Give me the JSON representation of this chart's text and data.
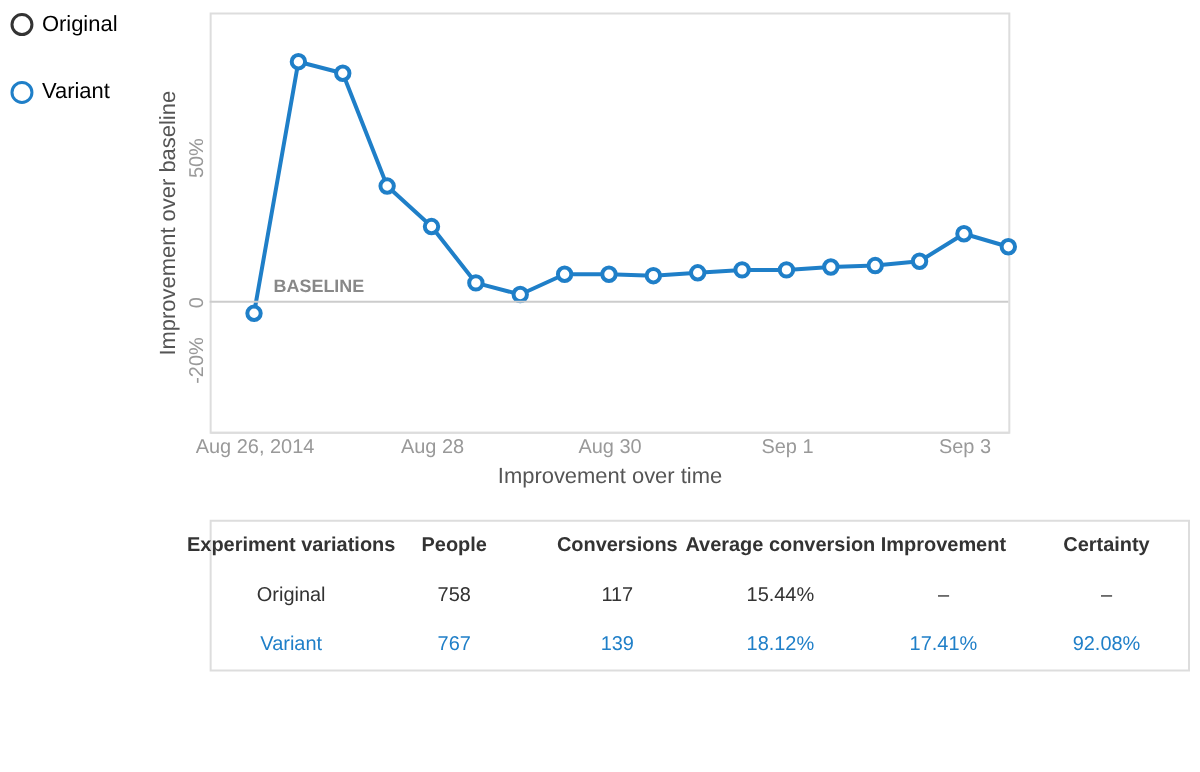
{
  "chart_data": [
    {
      "type": "line",
      "xlabel": "Improvement over time",
      "ylabel": "Improvement over baseline",
      "x": [
        "2014-08-26T00:00",
        "2014-08-26T12:00",
        "2014-08-27T00:00",
        "2014-08-27T12:00",
        "2014-08-28T00:00",
        "2014-08-28T12:00",
        "2014-08-29T00:00",
        "2014-08-29T12:00",
        "2014-08-30T00:00",
        "2014-08-30T12:00",
        "2014-08-31T00:00",
        "2014-08-31T12:00",
        "2014-09-01T00:00",
        "2014-09-01T12:00",
        "2014-09-02T00:00",
        "2014-09-02T12:00",
        "2014-09-03T00:00",
        "2014-09-03T12:00"
      ],
      "series": [
        {
          "name": "Original",
          "color": "#333333",
          "values": [
            null,
            null,
            null,
            null,
            null,
            null,
            null,
            null,
            null,
            null,
            null,
            null,
            null,
            null,
            null,
            null,
            null,
            null
          ]
        },
        {
          "name": "Variant",
          "color": "#1f7fc8",
          "values": [
            -4,
            83,
            79,
            40,
            26,
            6.5,
            2.5,
            9.5,
            9.5,
            9,
            10,
            11,
            11,
            12,
            12.5,
            14,
            23.5,
            19
          ]
        }
      ],
      "xlim": [
        "2014-08-25T12:00",
        "2014-09-03T12:00"
      ],
      "xticks": [
        {
          "value": "2014-08-26",
          "label": "Aug 26, 2014"
        },
        {
          "value": "2014-08-28",
          "label": "Aug 28"
        },
        {
          "value": "2014-08-30",
          "label": "Aug 30"
        },
        {
          "value": "2014-09-01",
          "label": "Sep 1"
        },
        {
          "value": "2014-09-03",
          "label": "Sep 3"
        }
      ],
      "ylim": [
        -45,
        100
      ],
      "yticks": [
        {
          "value": -20,
          "label": "-20%"
        },
        0,
        {
          "value": 50,
          "label": "50%"
        }
      ],
      "ref_lines": [
        {
          "axis": "y",
          "value": 0,
          "label": "BASELINE",
          "color": "#cccccc"
        }
      ],
      "marker": "circle",
      "line_style": "solid",
      "grid": false,
      "legend": "left"
    },
    {
      "type": "other",
      "categories": [
        "Experiment variations",
        "People",
        "Conversions",
        "Average conversion",
        "Improvement",
        "Certainty"
      ],
      "cell_labels": [
        [
          "Original",
          "758",
          "117",
          "15.44%",
          "–",
          "–"
        ],
        [
          "Variant",
          "767",
          "139",
          "18.12%",
          "17.41%",
          "92.08%"
        ]
      ],
      "colors": [
        "#333333",
        "#333333",
        "#1f7fc8"
      ]
    }
  ]
}
